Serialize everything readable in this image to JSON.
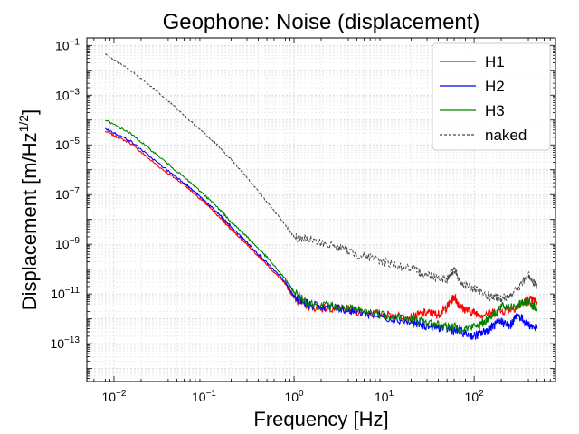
{
  "chart_data": {
    "type": "line",
    "title": "Geophone: Noise (displacement)",
    "xlabel": "Frequency [Hz]",
    "ylabel": "Displacement [m/Hz",
    "ylabel_sup": "1/2",
    "ylabel_suffix": "]",
    "xscale": "log",
    "yscale": "log",
    "xlim": [
      0.005,
      800
    ],
    "ylim": [
      3e-15,
      0.2
    ],
    "grid": true,
    "legend_position": "top-right",
    "x_ticks": [
      {
        "value": 0.01,
        "base": "10",
        "exp": "−2"
      },
      {
        "value": 0.1,
        "base": "10",
        "exp": "−1"
      },
      {
        "value": 1,
        "base": "10",
        "exp": "0"
      },
      {
        "value": 10,
        "base": "10",
        "exp": "1"
      },
      {
        "value": 100,
        "base": "10",
        "exp": "2"
      }
    ],
    "y_ticks": [
      {
        "value": 1e-13,
        "base": "10",
        "exp": "−13"
      },
      {
        "value": 1e-11,
        "base": "10",
        "exp": "−11"
      },
      {
        "value": 1e-09,
        "base": "10",
        "exp": "−9"
      },
      {
        "value": 1e-07,
        "base": "10",
        "exp": "−7"
      },
      {
        "value": 1e-05,
        "base": "10",
        "exp": "−5"
      },
      {
        "value": 0.001,
        "base": "10",
        "exp": "−3"
      },
      {
        "value": 0.1,
        "base": "10",
        "exp": "−1"
      }
    ],
    "series": [
      {
        "name": "H1",
        "color": "#ff0000",
        "dash": "solid",
        "x": [
          0.008,
          0.015,
          0.03,
          0.06,
          0.1,
          0.15,
          0.2,
          0.3,
          0.5,
          0.8,
          1.0,
          1.5,
          3,
          5,
          10,
          20,
          30,
          40,
          50,
          60,
          70,
          90,
          120,
          200,
          300,
          400,
          500
        ],
        "y": [
          3.5e-05,
          1.2e-05,
          1.5e-06,
          2.5e-07,
          5e-08,
          1.2e-08,
          4e-09,
          1e-09,
          1.5e-10,
          2.5e-11,
          7e-12,
          3e-12,
          2.5e-12,
          2e-12,
          1.5e-12,
          1.2e-12,
          1.8e-12,
          1.5e-12,
          3e-12,
          8e-12,
          3e-12,
          2e-12,
          1.5e-12,
          2e-12,
          3e-12,
          6e-12,
          5e-12
        ]
      },
      {
        "name": "H2",
        "color": "#0000ff",
        "dash": "solid",
        "x": [
          0.008,
          0.015,
          0.03,
          0.06,
          0.1,
          0.15,
          0.2,
          0.3,
          0.5,
          0.8,
          1.0,
          1.5,
          3,
          5,
          10,
          20,
          30,
          50,
          70,
          100,
          130,
          160,
          200,
          250,
          300,
          400,
          500
        ],
        "y": [
          4.5e-05,
          1.5e-05,
          2e-06,
          3e-07,
          6e-08,
          1.5e-08,
          5e-09,
          1.2e-09,
          1.8e-10,
          3e-11,
          8e-12,
          3.5e-12,
          2.8e-12,
          2e-12,
          1.2e-12,
          7e-13,
          5e-13,
          4e-13,
          3e-13,
          2e-13,
          3e-13,
          5e-13,
          8e-13,
          5e-13,
          1.5e-12,
          6e-13,
          4e-13
        ]
      },
      {
        "name": "H3",
        "color": "#008000",
        "dash": "solid",
        "x": [
          0.008,
          0.015,
          0.03,
          0.06,
          0.1,
          0.15,
          0.2,
          0.3,
          0.5,
          0.8,
          1.0,
          1.5,
          3,
          5,
          10,
          20,
          30,
          50,
          80,
          120,
          150,
          200,
          300,
          400,
          500
        ],
        "y": [
          0.0001,
          3e-05,
          4e-06,
          5e-07,
          1e-07,
          2.5e-08,
          8e-09,
          2e-09,
          3e-10,
          4e-11,
          1.2e-11,
          4e-12,
          3e-12,
          2.2e-12,
          1.5e-12,
          1e-12,
          7e-13,
          5e-13,
          4e-13,
          6e-13,
          1.2e-12,
          3e-12,
          3.5e-12,
          5e-12,
          2.5e-12
        ]
      },
      {
        "name": "naked",
        "color": "#444444",
        "dash": "dashed",
        "x": [
          0.008,
          0.015,
          0.03,
          0.06,
          0.1,
          0.15,
          0.2,
          0.3,
          0.5,
          0.8,
          1.0,
          1.5,
          3,
          5,
          10,
          20,
          30,
          50,
          60,
          70,
          100,
          150,
          200,
          300,
          400,
          500
        ],
        "y": [
          0.045,
          0.01,
          0.0015,
          0.00015,
          3e-05,
          8e-06,
          2.5e-06,
          5e-07,
          5e-08,
          6e-09,
          2e-09,
          1.5e-09,
          8e-10,
          4e-10,
          2e-10,
          1e-10,
          6e-11,
          4e-11,
          1e-10,
          3e-11,
          1.5e-11,
          8e-12,
          6e-12,
          1.5e-11,
          6e-11,
          2e-11
        ]
      }
    ]
  }
}
